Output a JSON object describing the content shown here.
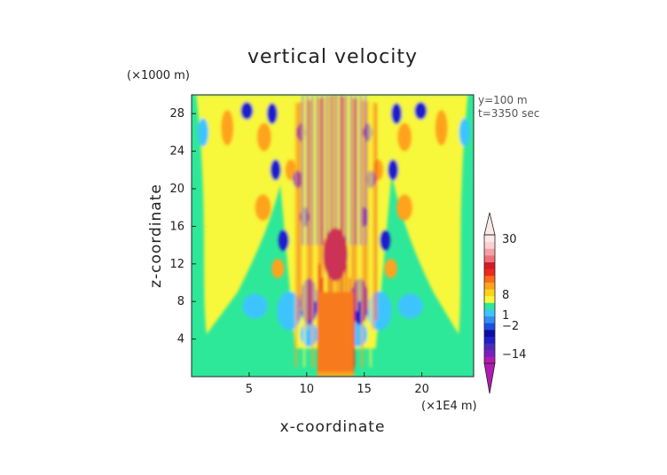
{
  "chart_data": {
    "type": "heatmap",
    "title": "vertical velocity",
    "xlabel": "x-coordinate",
    "ylabel": "z-coordinate",
    "x_unit": "(×1E4 m)",
    "y_unit": "(×1000 m)",
    "annotations": [
      "y=100 m",
      "t=3350 sec"
    ],
    "x_ticks": [
      5,
      10,
      15,
      20
    ],
    "y_ticks": [
      4,
      8,
      12,
      16,
      20,
      24,
      28
    ],
    "xlim": [
      0,
      24.5
    ],
    "ylim": [
      0,
      30
    ],
    "colorbar": {
      "tick_labels": [
        "30",
        "8",
        "1",
        "−2",
        "−14"
      ],
      "levels": [
        30,
        8,
        1,
        -2,
        -14
      ],
      "range": [
        -26,
        38
      ],
      "colors": [
        "#b31ab3",
        "#7a1fbf",
        "#4d2ab8",
        "#1f1fcc",
        "#0d0da6",
        "#1e4fe0",
        "#2f8ff5",
        "#3cc4ff",
        "#2ee89a",
        "#f7f73a",
        "#ffd21a",
        "#ffa31a",
        "#ff6a1a",
        "#ee2a1a",
        "#d41a2a",
        "#f0707a",
        "#f5a0a5",
        "#fbd0d2",
        "#fde8e8"
      ]
    },
    "field_colors": {
      "background": "#2ee89a",
      "weak_up": "#f7f73a",
      "moderate_up": "#ffa31a",
      "strong_up": "#ee2a1a",
      "weak_down": "#3cc4ff",
      "strong_down": "#1f1fcc"
    }
  }
}
